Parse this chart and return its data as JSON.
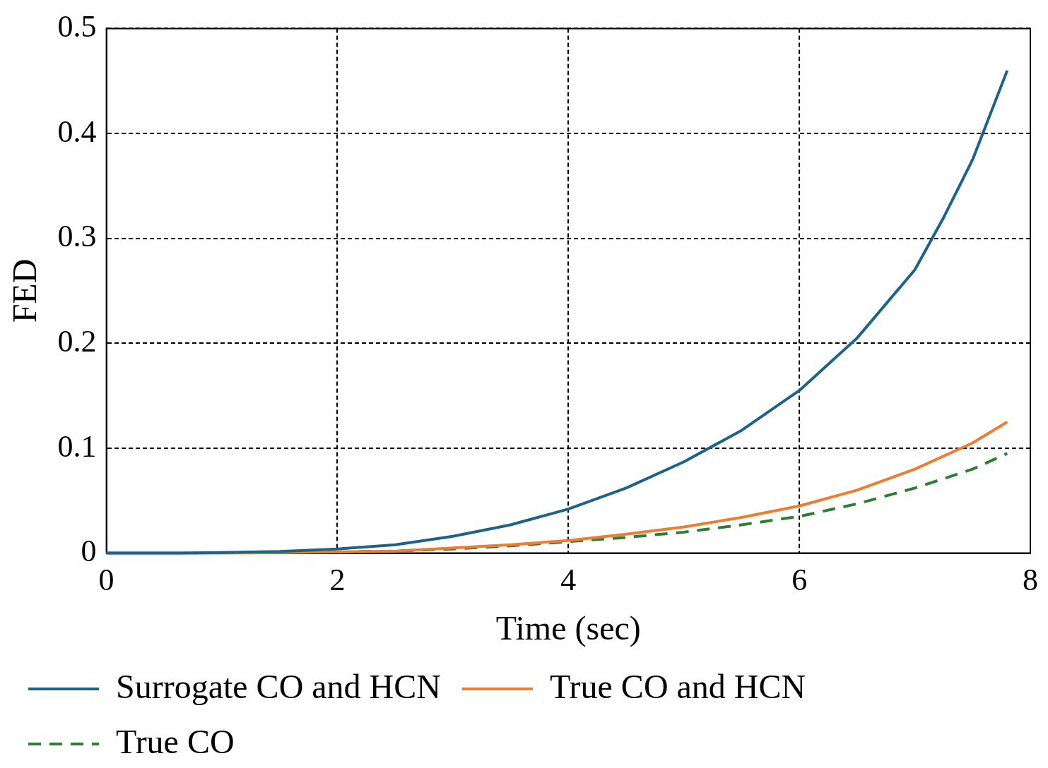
{
  "chart_data": {
    "type": "line",
    "xlabel": "Time (sec)",
    "ylabel": "FED",
    "xlim": [
      0,
      8
    ],
    "xticks": [
      0,
      2,
      4,
      6,
      8
    ],
    "ylim": [
      0,
      0.5
    ],
    "yticks": [
      0,
      0.1,
      0.2,
      0.3,
      0.4,
      0.5
    ],
    "grid": true,
    "legend": "bottom",
    "marker": "none",
    "series": [
      {
        "name": "Surrogate CO and HCN",
        "color": "#1f6288",
        "line_style": "solid",
        "x": [
          0,
          0.5,
          1,
          1.5,
          2,
          2.5,
          3,
          3.5,
          4,
          4.5,
          5,
          5.5,
          6,
          6.5,
          7,
          7.25,
          7.5,
          7.8
        ],
        "values": [
          0,
          0,
          0.0005,
          0.0015,
          0.004,
          0.008,
          0.016,
          0.027,
          0.042,
          0.062,
          0.087,
          0.117,
          0.155,
          0.205,
          0.27,
          0.32,
          0.375,
          0.46
        ]
      },
      {
        "name": "True CO and HCN",
        "color": "#ed7d31",
        "line_style": "solid",
        "x": [
          0,
          1,
          2,
          2.5,
          3,
          3.5,
          4,
          4.5,
          5,
          5.5,
          6,
          6.5,
          7,
          7.5,
          7.8
        ],
        "values": [
          0,
          0,
          0.001,
          0.002,
          0.005,
          0.008,
          0.012,
          0.018,
          0.025,
          0.034,
          0.045,
          0.06,
          0.08,
          0.105,
          0.125
        ]
      },
      {
        "name": "True CO",
        "color": "#2e7d32",
        "line_style": "dashed",
        "x": [
          2,
          2.5,
          3,
          3.5,
          4,
          4.5,
          5,
          5.5,
          6,
          6.5,
          7,
          7.5,
          7.8
        ],
        "values": [
          0.001,
          0.002,
          0.004,
          0.007,
          0.011,
          0.015,
          0.02,
          0.027,
          0.035,
          0.047,
          0.062,
          0.08,
          0.095
        ]
      }
    ]
  }
}
